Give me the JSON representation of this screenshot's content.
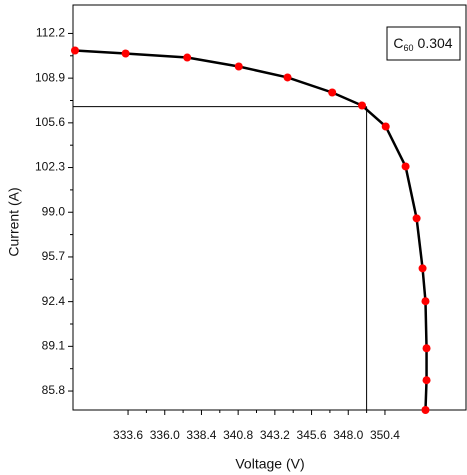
{
  "chart_data": {
    "type": "line",
    "x_label": "Voltage (V)",
    "y_label": "Current (A)",
    "annotation": {
      "base": "C",
      "subscript": "60",
      "text": "0.304"
    },
    "x": [
      330.13,
      333.44,
      337.47,
      340.84,
      344.03,
      346.95,
      348.9,
      350.45,
      351.75,
      352.47,
      352.86,
      353.05,
      353.12,
      353.12,
      353.05
    ],
    "series": [
      {
        "color": "#000000",
        "marker_color": "#ff0000",
        "values": [
          110.94,
          110.72,
          110.42,
          109.76,
          108.95,
          107.84,
          106.88,
          105.33,
          102.38,
          98.55,
          94.86,
          92.43,
          88.96,
          86.6,
          84.4
        ]
      }
    ],
    "reference_point": {
      "x": 349.2,
      "y": 106.8
    },
    "xlim": [
      330.0,
      355.7
    ],
    "ylim": [
      84.4,
      114.3
    ],
    "xticks": [
      333.6,
      {
        "value": 336.0,
        "label": "336.0"
      },
      338.4,
      340.8,
      343.2,
      345.6,
      {
        "value": 348.0,
        "label": "348.0"
      },
      350.4
    ],
    "yticks": [
      112.2,
      108.9,
      105.6,
      102.3,
      {
        "value": 99.0,
        "label": "99.0"
      },
      95.7,
      92.4,
      89.1,
      85.8
    ]
  }
}
